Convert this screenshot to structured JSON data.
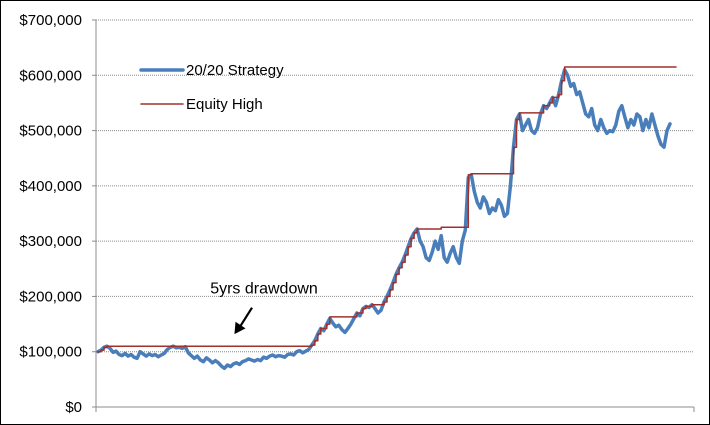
{
  "chart_data": {
    "type": "line",
    "title": "",
    "xlabel": "",
    "ylabel": "",
    "ylim": [
      0,
      700000
    ],
    "yticks": [
      0,
      100000,
      200000,
      300000,
      400000,
      500000,
      600000,
      700000
    ],
    "ytick_labels": [
      "$0",
      "$100,000",
      "$200,000",
      "$300,000",
      "$400,000",
      "$500,000",
      "$600,000",
      "$700,000"
    ],
    "grid": "horizontal",
    "legend_position": "top-left",
    "series": [
      {
        "name": "20/20 Strategy",
        "color": "#4a7ebb",
        "values": [
          100000,
          103000,
          108000,
          110000,
          106000,
          99000,
          101000,
          95000,
          93000,
          97000,
          92000,
          95000,
          90000,
          88000,
          100000,
          96000,
          92000,
          96000,
          93000,
          95000,
          91000,
          94000,
          97000,
          104000,
          108000,
          110000,
          107000,
          108000,
          106000,
          109000,
          98000,
          93000,
          88000,
          92000,
          85000,
          82000,
          89000,
          85000,
          80000,
          84000,
          80000,
          74000,
          70000,
          76000,
          73000,
          78000,
          80000,
          77000,
          82000,
          84000,
          87000,
          85000,
          83000,
          86000,
          84000,
          90000,
          88000,
          92000,
          94000,
          91000,
          93000,
          92000,
          90000,
          95000,
          96000,
          94000,
          100000,
          102000,
          98000,
          101000,
          104000,
          112000,
          120000,
          132000,
          142000,
          138000,
          150000,
          160000,
          152000,
          145000,
          148000,
          140000,
          135000,
          142000,
          150000,
          160000,
          170000,
          165000,
          178000,
          182000,
          180000,
          185000,
          178000,
          170000,
          175000,
          190000,
          200000,
          212000,
          225000,
          240000,
          252000,
          262000,
          275000,
          290000,
          305000,
          315000,
          322000,
          300000,
          290000,
          270000,
          265000,
          280000,
          300000,
          285000,
          310000,
          270000,
          262000,
          278000,
          290000,
          270000,
          260000,
          300000,
          320000,
          415000,
          420000,
          390000,
          370000,
          360000,
          380000,
          370000,
          350000,
          360000,
          355000,
          375000,
          365000,
          345000,
          350000,
          400000,
          470000,
          520000,
          530000,
          500000,
          510000,
          520000,
          500000,
          495000,
          505000,
          530000,
          545000,
          540000,
          550000,
          560000,
          545000,
          565000,
          590000,
          610000,
          600000,
          580000,
          585000,
          565000,
          570000,
          550000,
          530000,
          525000,
          540000,
          510000,
          500000,
          520000,
          505000,
          495000,
          500000,
          498000,
          510000,
          535000,
          545000,
          525000,
          505000,
          520000,
          510000,
          530000,
          525000,
          500000,
          520000,
          505000,
          530000,
          510000,
          490000,
          475000,
          470000,
          500000,
          512000
        ],
        "line_width": 3.5
      },
      {
        "name": "Equity High",
        "color": "#a0302c",
        "values": [
          100000,
          103000,
          108000,
          110000,
          110000,
          110000,
          110000,
          110000,
          110000,
          110000,
          110000,
          110000,
          110000,
          110000,
          110000,
          110000,
          110000,
          110000,
          110000,
          110000,
          110000,
          110000,
          110000,
          110000,
          110000,
          110000,
          110000,
          110000,
          110000,
          110000,
          110000,
          110000,
          110000,
          110000,
          110000,
          110000,
          110000,
          110000,
          110000,
          110000,
          110000,
          110000,
          110000,
          110000,
          110000,
          110000,
          110000,
          110000,
          110000,
          110000,
          110000,
          110000,
          110000,
          110000,
          110000,
          110000,
          110000,
          110000,
          110000,
          110000,
          110000,
          110000,
          110000,
          110000,
          110000,
          110000,
          110000,
          110000,
          110000,
          110000,
          110000,
          112000,
          120000,
          132000,
          142000,
          142000,
          150000,
          163000,
          163000,
          163000,
          163000,
          163000,
          163000,
          163000,
          163000,
          163000,
          170000,
          170000,
          178000,
          182000,
          182000,
          185000,
          185000,
          185000,
          185000,
          190000,
          200000,
          212000,
          225000,
          240000,
          252000,
          262000,
          275000,
          290000,
          305000,
          315000,
          322000,
          322000,
          322000,
          322000,
          322000,
          322000,
          322000,
          322000,
          325000,
          325000,
          325000,
          325000,
          325000,
          325000,
          325000,
          325000,
          325000,
          420000,
          422000,
          422000,
          422000,
          422000,
          422000,
          422000,
          422000,
          422000,
          422000,
          422000,
          422000,
          422000,
          422000,
          422000,
          470000,
          520000,
          532000,
          532000,
          532000,
          532000,
          532000,
          532000,
          532000,
          532000,
          545000,
          545000,
          550000,
          560000,
          560000,
          565000,
          590000,
          615000,
          615000,
          615000,
          615000,
          615000,
          615000,
          615000,
          615000,
          615000,
          615000,
          615000,
          615000,
          615000,
          615000,
          615000,
          615000,
          615000,
          615000,
          615000,
          615000,
          615000,
          615000,
          615000,
          615000,
          615000,
          615000,
          615000,
          615000,
          615000,
          615000,
          615000,
          615000,
          615000,
          615000,
          615000,
          615000,
          615000,
          615000
        ],
        "line_width": 1.5
      }
    ],
    "annotations": [
      {
        "text": "5yrs drawdown",
        "arrow": true,
        "target_index": 42,
        "target_value": 110000,
        "text_value": 205000
      }
    ]
  }
}
